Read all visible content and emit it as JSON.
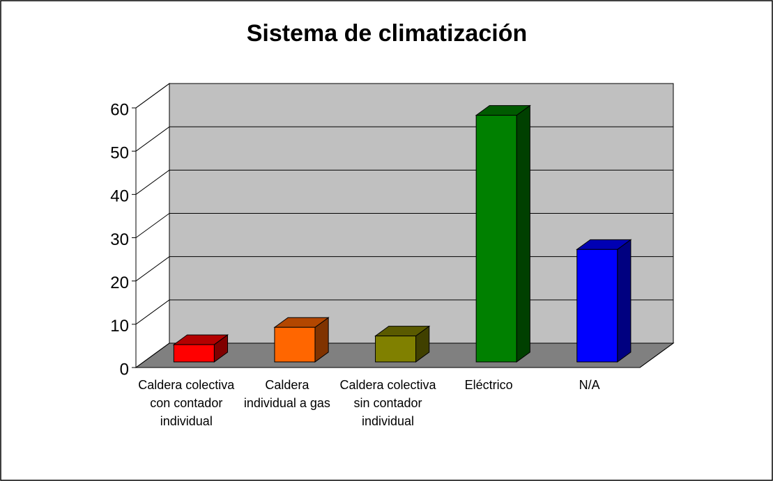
{
  "chart_data": {
    "type": "bar3d",
    "title": "Sistema de climatización",
    "categories": [
      "Caldera colectiva con contador individual",
      "Caldera individual a gas",
      "Caldera colectiva sin contador individual",
      "Eléctrico",
      "N/A"
    ],
    "values": [
      4,
      8,
      6,
      57,
      26
    ],
    "colors": [
      "#ff0000",
      "#ff6600",
      "#808000",
      "#008000",
      "#0000ff"
    ],
    "ylim": [
      0,
      60
    ],
    "yticks": [
      0,
      10,
      20,
      30,
      40,
      50,
      60
    ],
    "grid": true
  }
}
